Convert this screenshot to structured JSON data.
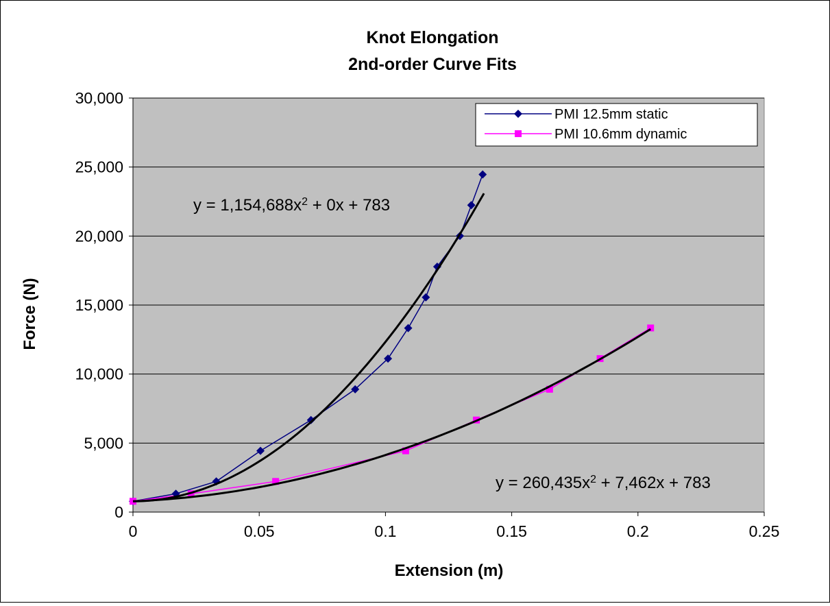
{
  "chart_data": {
    "type": "scatter",
    "title": [
      "Knot Elongation",
      "2nd-order Curve Fits"
    ],
    "xlabel": "Extension (m)",
    "ylabel": "Force (N)",
    "xlim": [
      0,
      0.25
    ],
    "ylim": [
      0,
      30000
    ],
    "x_ticks": [
      0,
      0.05,
      0.1,
      0.15,
      0.2,
      0.25
    ],
    "x_tick_labels": [
      "0",
      "0.05",
      "0.1",
      "0.15",
      "0.2",
      "0.25"
    ],
    "y_ticks": [
      0,
      5000,
      10000,
      15000,
      20000,
      25000,
      30000
    ],
    "y_tick_labels": [
      "0",
      "5,000",
      "10,000",
      "15,000",
      "20,000",
      "25,000",
      "30,000"
    ],
    "grid": "horizontal",
    "plot_background": "#c0c0c0",
    "legend_position": "top-right",
    "series": [
      {
        "name": "PMI 12.5mm static",
        "color": "#000080",
        "marker": "diamond",
        "x": [
          0,
          0.017,
          0.033,
          0.0505,
          0.0705,
          0.088,
          0.101,
          0.109,
          0.116,
          0.1205,
          0.1295,
          0.134,
          0.1385
        ],
        "y": [
          783,
          1330,
          2220,
          4440,
          6670,
          8900,
          11120,
          13330,
          15560,
          17780,
          20010,
          22240,
          24460
        ]
      },
      {
        "name": "PMI 10.6mm dynamic",
        "color": "#ff00ff",
        "marker": "square",
        "x": [
          0,
          0.023,
          0.0565,
          0.108,
          0.136,
          0.165,
          0.185,
          0.205
        ],
        "y": [
          783,
          1330,
          2220,
          4440,
          6670,
          8900,
          11120,
          13340
        ]
      }
    ],
    "fits": [
      {
        "equation_prefix": "y = 1,154,688x",
        "equation_suffix": " + 0x + 783",
        "exponent": "2",
        "a": 1154688,
        "b": 0,
        "c": 783,
        "x_range": [
          0,
          0.139
        ],
        "color": "#000000"
      },
      {
        "equation_prefix": "y = 260,435x",
        "equation_suffix": " + 7,462x + 783",
        "exponent": "2",
        "a": 260435,
        "b": 7462,
        "c": 783,
        "x_range": [
          0,
          0.205
        ],
        "color": "#000000"
      }
    ]
  }
}
